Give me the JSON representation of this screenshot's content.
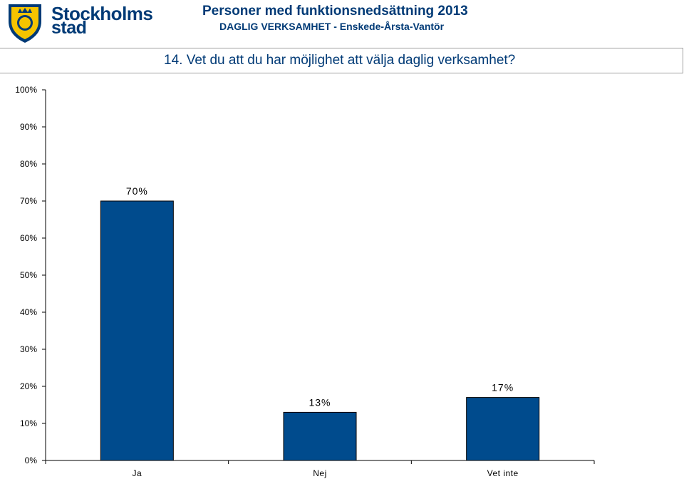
{
  "header": {
    "brand_line1": "Stockholms",
    "brand_line2": "stad",
    "title": "Personer med funktionsnedsättning 2013",
    "subtitle": "DAGLIG VERKSAMHET - Enskede-Årsta-Vantör",
    "brand_color": "#003a76",
    "logo_icon": "stockholm-crest-icon"
  },
  "question": {
    "text": "14.  Vet du att du har möjlighet att välja daglig verksamhet?"
  },
  "chart_data": {
    "type": "bar",
    "categories": [
      "Ja",
      "Nej",
      "Vet inte"
    ],
    "values": [
      70,
      13,
      17
    ],
    "value_labels": [
      "70%",
      "13%",
      "17%"
    ],
    "ylim": [
      0,
      100
    ],
    "yticks": [
      "0%",
      "10%",
      "20%",
      "30%",
      "40%",
      "50%",
      "60%",
      "70%",
      "80%",
      "90%",
      "100%"
    ],
    "bar_color": "#004b8d",
    "grid": false,
    "title": "",
    "xlabel": "",
    "ylabel": ""
  }
}
